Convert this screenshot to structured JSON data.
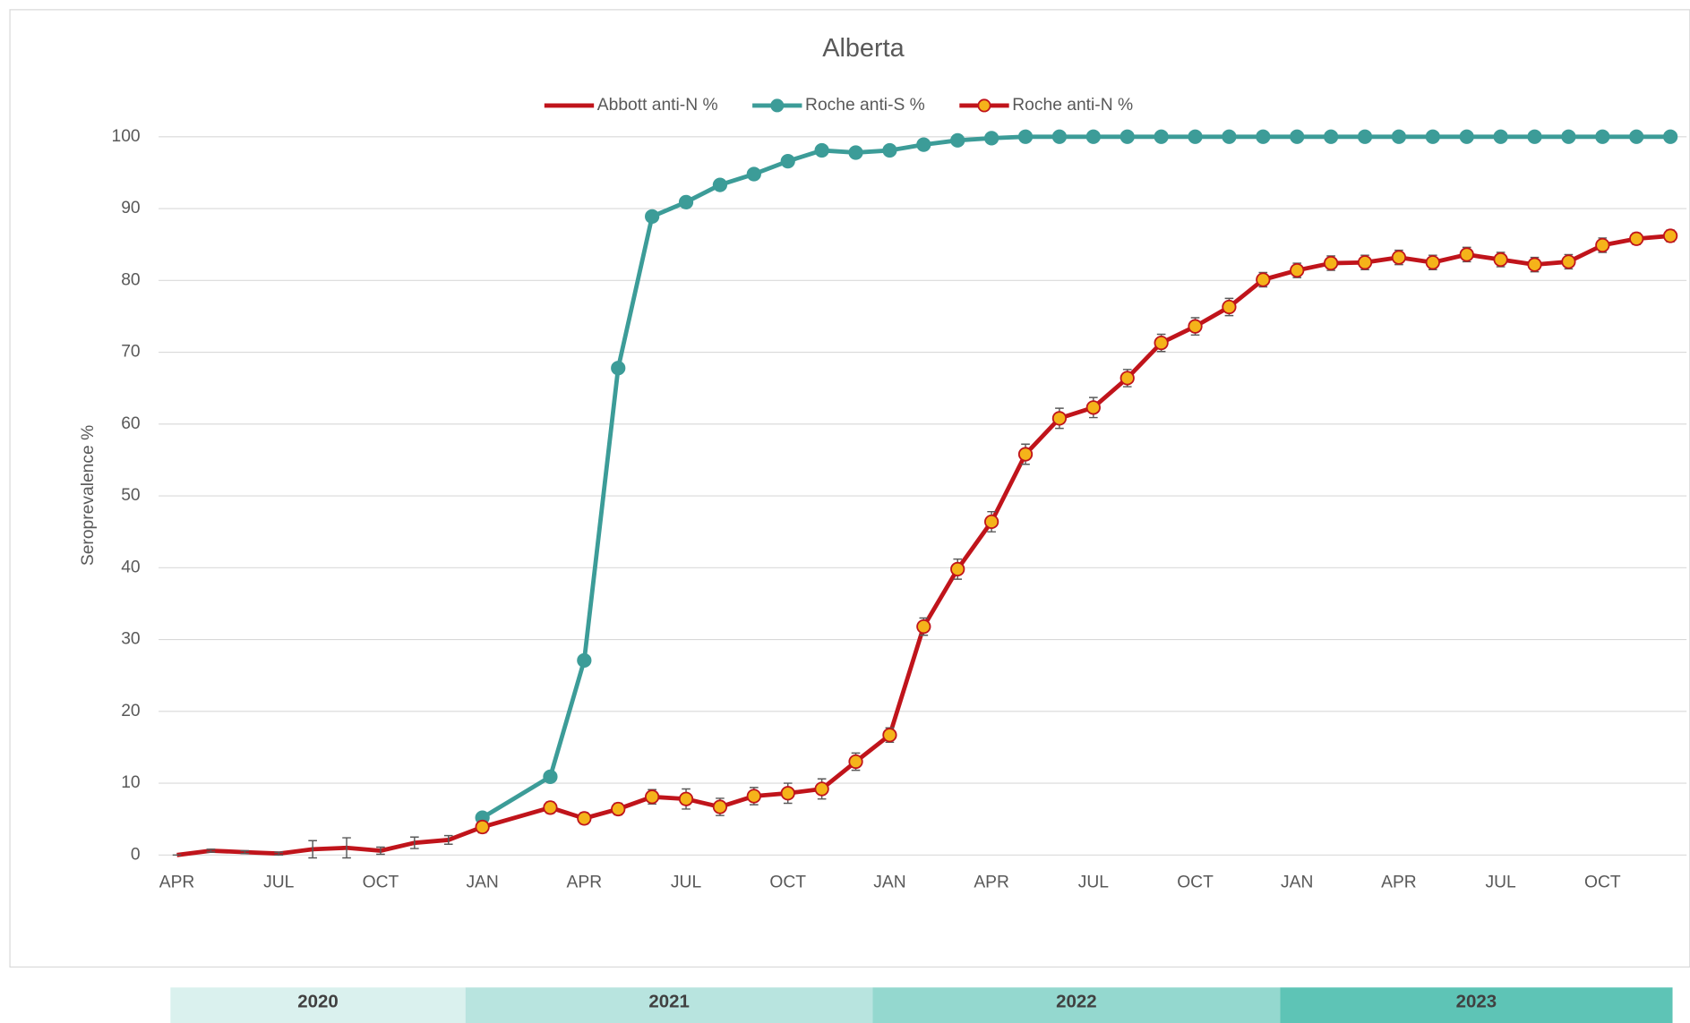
{
  "chart_data": {
    "type": "line",
    "title": "Alberta",
    "y_label": "Seroprevalence %",
    "categories": [
      "APR",
      null,
      null,
      "JUL",
      null,
      null,
      "OCT",
      null,
      null,
      "JAN",
      null,
      null,
      "APR",
      null,
      null,
      "JUL",
      null,
      null,
      "OCT",
      null,
      null,
      "JAN",
      null,
      null,
      "APR",
      null,
      null,
      "JUL",
      null,
      null,
      "OCT",
      null,
      null,
      "JAN",
      null,
      null,
      "APR",
      null,
      null,
      "JUL",
      null,
      null,
      "OCT",
      null,
      null
    ],
    "years": [
      "2020",
      "2021",
      "2022",
      "2023"
    ],
    "year_colors": [
      "#daf1ee",
      "#b8e4df",
      "#94d8cf",
      "#5ec4b6"
    ],
    "ylim": [
      0,
      100
    ],
    "yticks": [
      0,
      10,
      20,
      30,
      40,
      50,
      60,
      70,
      80,
      90,
      100
    ],
    "grid": true,
    "connect_gaps": true,
    "series": [
      {
        "name": "Abbott anti-N %",
        "color": "#c0141b",
        "marker": false,
        "values": [
          0,
          0.6,
          0.4,
          0.2,
          0.8,
          1.0,
          0.6,
          1.7,
          2.1,
          3.9,
          null,
          null,
          null,
          null,
          null,
          null,
          null,
          null,
          null,
          null,
          null,
          null,
          null,
          null,
          null,
          null,
          null,
          null,
          null,
          null,
          null,
          null,
          null,
          null,
          null,
          null,
          null,
          null,
          null,
          null,
          null,
          null,
          null,
          null,
          null
        ],
        "errors": [
          0,
          0.2,
          0.2,
          0.2,
          1.2,
          1.4,
          0.5,
          0.8,
          0.6,
          0.8,
          null,
          null,
          null,
          null,
          null,
          null,
          null,
          null,
          null,
          null,
          null,
          null,
          null,
          null,
          null,
          null,
          null,
          null,
          null,
          null,
          null,
          null,
          null,
          null,
          null,
          null,
          null,
          null,
          null,
          null,
          null,
          null,
          null,
          null,
          null
        ]
      },
      {
        "name": "Roche anti-S %",
        "color": "#3c9c98",
        "marker": true,
        "marker_fill": "#3c9c98",
        "values": [
          null,
          null,
          null,
          null,
          null,
          null,
          null,
          null,
          null,
          5.2,
          null,
          10.9,
          27.1,
          67.8,
          88.9,
          90.9,
          93.3,
          94.8,
          96.6,
          98.1,
          97.8,
          98.1,
          98.9,
          99.5,
          99.8,
          100,
          100,
          100,
          100,
          100,
          100,
          100,
          100,
          100,
          100,
          100,
          100,
          100,
          100,
          100,
          100,
          100,
          100,
          100,
          100
        ]
      },
      {
        "name": "Roche anti-N %",
        "color": "#c0141b",
        "marker": true,
        "marker_fill": "#f5b31a",
        "values": [
          null,
          null,
          null,
          null,
          null,
          null,
          null,
          null,
          null,
          3.9,
          null,
          6.6,
          5.1,
          6.4,
          8.1,
          7.8,
          6.7,
          8.2,
          8.6,
          9.2,
          13.0,
          16.7,
          31.8,
          39.8,
          46.4,
          55.8,
          60.8,
          62.3,
          66.4,
          71.3,
          73.6,
          76.3,
          80.1,
          81.4,
          82.4,
          82.5,
          83.2,
          82.5,
          83.6,
          82.9,
          82.2,
          82.6,
          84.9,
          85.8,
          86.2
        ],
        "errors": [
          null,
          null,
          null,
          null,
          null,
          null,
          null,
          null,
          null,
          0.8,
          null,
          0.8,
          0.8,
          0.8,
          1.0,
          1.4,
          1.2,
          1.2,
          1.4,
          1.4,
          1.2,
          1.0,
          1.2,
          1.4,
          1.4,
          1.4,
          1.4,
          1.4,
          1.2,
          1.2,
          1.2,
          1.2,
          1.0,
          1.0,
          1.0,
          1.0,
          1.0,
          1.0,
          1.0,
          1.0,
          1.0,
          1.0,
          1.0,
          0.8,
          0.8
        ]
      }
    ]
  }
}
